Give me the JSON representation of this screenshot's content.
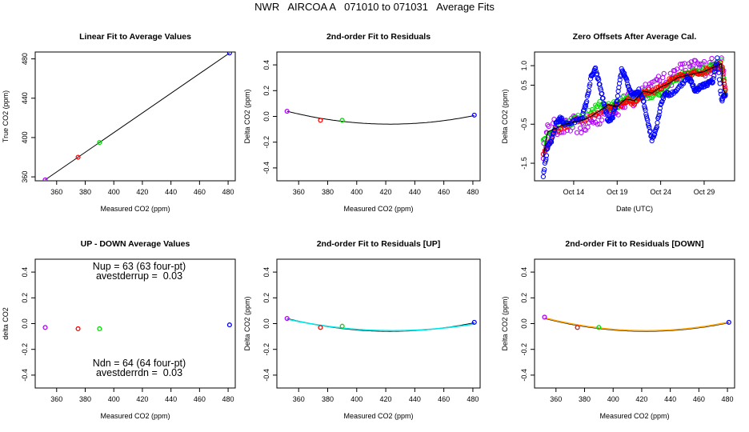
{
  "suptitle": "NWR   AIRCOA A   071010 to 071031   Average Fits",
  "colors": {
    "blue": "#0000ff",
    "red": "#ff0000",
    "green": "#00dd00",
    "purple": "#b000ff",
    "black": "#000000",
    "cyan": "#00e5e5",
    "orange": "#ffa500"
  },
  "chart_data": [
    {
      "id": "p1",
      "type": "scatter",
      "title": "Linear Fit to Average Values",
      "xlabel": "Measured CO2 (ppm)",
      "ylabel": "True CO2 (ppm)",
      "xlim": [
        345,
        485
      ],
      "ylim": [
        356,
        487
      ],
      "xticks": [
        360,
        380,
        400,
        420,
        440,
        460,
        480
      ],
      "yticks": [
        360,
        400,
        440,
        480
      ],
      "points": [
        {
          "x": 352,
          "y": 357,
          "color": "purple"
        },
        {
          "x": 375,
          "y": 380,
          "color": "red"
        },
        {
          "x": 390,
          "y": 395,
          "color": "green"
        },
        {
          "x": 481,
          "y": 486,
          "color": "blue"
        }
      ],
      "line": {
        "x": [
          352,
          481
        ],
        "y": [
          357,
          486
        ],
        "color": "black"
      }
    },
    {
      "id": "p2",
      "type": "scatter",
      "title": "2nd-order Fit to Residuals",
      "xlabel": "Measured CO2 (ppm)",
      "ylabel": "Delta CO2 (ppm)",
      "xlim": [
        345,
        485
      ],
      "ylim": [
        -0.5,
        0.5
      ],
      "xticks": [
        360,
        380,
        400,
        420,
        440,
        460,
        480
      ],
      "yticks": [
        -0.4,
        -0.2,
        0.0,
        0.2,
        0.4
      ],
      "points": [
        {
          "x": 352,
          "y": 0.04,
          "color": "purple"
        },
        {
          "x": 375,
          "y": -0.03,
          "color": "red"
        },
        {
          "x": 390,
          "y": -0.03,
          "color": "green"
        },
        {
          "x": 481,
          "y": 0.01,
          "color": "blue"
        }
      ],
      "curves": [
        {
          "vertex_x": 423,
          "vertex_y": -0.06,
          "anchor_x": 352,
          "anchor_y": 0.04,
          "color": "black"
        }
      ]
    },
    {
      "id": "p3",
      "type": "scatter",
      "title": "Zero Offsets After Average Cal.",
      "xlabel": "Date (UTC)",
      "ylabel": "Delta CO2 (ppm)",
      "xlim": [
        9.5,
        32.5
      ],
      "ylim": [
        -1.95,
        1.35
      ],
      "xticks": [
        14,
        19,
        24,
        29
      ],
      "xtick_labels": [
        "Oct 14",
        "Oct 19",
        "Oct 24",
        "Oct 29"
      ],
      "yticks": [
        -1.5,
        -0.5,
        0.5,
        1.0
      ],
      "ytick_labels": [
        "-1.5",
        "-0.5",
        "0.5",
        "1.0"
      ],
      "series": [
        {
          "name": "purple",
          "color": "purple",
          "jitter": 0.22,
          "x": [
            10.5,
            11,
            12,
            13,
            14,
            15,
            16,
            17,
            18,
            19,
            20,
            21,
            22,
            23,
            24,
            25,
            26,
            27,
            28,
            29,
            30,
            31,
            31.5
          ],
          "y": [
            -1.2,
            -0.7,
            -0.55,
            -0.6,
            -0.5,
            -0.55,
            -0.45,
            -0.3,
            -0.1,
            -0.1,
            0.1,
            0.1,
            0.4,
            0.5,
            0.55,
            0.65,
            0.85,
            0.9,
            0.95,
            0.95,
            1.0,
            1.1,
            0.3
          ]
        },
        {
          "name": "green",
          "color": "green",
          "jitter": 0.1,
          "x": [
            10.5,
            12,
            14,
            16,
            17,
            18,
            19,
            20,
            21,
            22,
            23,
            24,
            25,
            26,
            27,
            28,
            29,
            30,
            31,
            31.5
          ],
          "y": [
            -1.0,
            -0.6,
            -0.4,
            -0.2,
            0.0,
            -0.05,
            0.0,
            0.2,
            0.15,
            0.3,
            0.2,
            0.35,
            0.55,
            0.7,
            0.8,
            0.85,
            0.9,
            0.95,
            1.1,
            0.2
          ]
        },
        {
          "name": "red",
          "color": "red",
          "jitter": 0.07,
          "x": [
            10.5,
            12,
            14,
            16,
            18,
            19,
            20,
            21,
            22,
            23,
            24,
            25,
            26,
            27,
            28,
            29,
            30,
            31,
            31.5
          ],
          "y": [
            -1.3,
            -0.65,
            -0.45,
            -0.3,
            -0.1,
            -0.05,
            0.1,
            0.05,
            0.3,
            0.35,
            0.45,
            0.6,
            0.7,
            0.75,
            0.8,
            0.85,
            0.95,
            1.05,
            0.3
          ]
        },
        {
          "name": "blue",
          "color": "blue",
          "jitter": 0.05,
          "x": [
            10.5,
            11,
            11.5,
            12,
            12.5,
            13,
            14,
            15,
            15.5,
            16,
            16.5,
            17,
            17.5,
            18,
            18.5,
            19,
            19.5,
            20,
            20.5,
            21,
            21.5,
            22,
            22.5,
            23,
            23.5,
            24,
            24.5,
            25,
            26,
            27,
            27.5,
            28,
            28.5,
            29,
            29.5,
            30,
            30.5,
            31,
            31.5
          ],
          "y": [
            -1.8,
            -1.1,
            -0.9,
            -0.45,
            -0.35,
            -0.5,
            -0.45,
            -0.3,
            0.1,
            0.7,
            0.9,
            0.5,
            0.0,
            -0.45,
            -0.3,
            0.1,
            0.9,
            0.7,
            0.3,
            0.25,
            0.35,
            0.1,
            -0.4,
            -0.9,
            -0.6,
            0.0,
            0.3,
            0.25,
            0.4,
            0.7,
            0.6,
            0.35,
            0.45,
            0.5,
            0.55,
            0.6,
            1.2,
            0.1,
            0.3
          ]
        },
        {
          "name": "black",
          "color": "black",
          "line": true,
          "x": [
            10.5,
            11,
            12,
            13,
            14,
            15,
            16,
            17,
            18,
            19,
            20,
            21,
            22,
            23,
            24,
            25,
            26,
            27,
            28,
            29,
            30,
            31,
            31.2,
            31.5
          ],
          "y": [
            -1.35,
            -0.7,
            -0.6,
            -0.5,
            -0.45,
            -0.4,
            -0.3,
            -0.15,
            0.0,
            -0.05,
            0.15,
            0.1,
            0.35,
            0.3,
            0.45,
            0.55,
            0.7,
            0.75,
            0.8,
            0.85,
            0.95,
            1.05,
            0.4,
            0.25
          ]
        }
      ]
    },
    {
      "id": "p4",
      "type": "scatter",
      "title": "UP - DOWN Average Values",
      "xlabel": "Measured CO2 (ppm)",
      "ylabel": "delta CO2",
      "xlim": [
        345,
        485
      ],
      "ylim": [
        -0.5,
        0.5
      ],
      "xticks": [
        360,
        380,
        400,
        420,
        440,
        460,
        480
      ],
      "yticks": [
        -0.4,
        -0.2,
        0.0,
        0.2,
        0.4
      ],
      "points": [
        {
          "x": 352,
          "y": -0.03,
          "color": "purple"
        },
        {
          "x": 375,
          "y": -0.04,
          "color": "red"
        },
        {
          "x": 390,
          "y": -0.04,
          "color": "green"
        },
        {
          "x": 481,
          "y": -0.01,
          "color": "blue"
        }
      ],
      "annotations": [
        {
          "text": "Nup = 63 (63 four-pt)",
          "pos": "top"
        },
        {
          "text": "avestderrup =  0.03",
          "pos": "top2"
        },
        {
          "text": "Ndn = 64 (64 four-pt)",
          "pos": "bottom"
        },
        {
          "text": "avestderrdn =  0.03",
          "pos": "bottom2"
        }
      ]
    },
    {
      "id": "p5",
      "type": "scatter",
      "title": "2nd-order Fit to Residuals [UP]",
      "xlabel": "Measured CO2 (ppm)",
      "ylabel": "Delta CO2 (ppm)",
      "xlim": [
        345,
        485
      ],
      "ylim": [
        -0.5,
        0.5
      ],
      "xticks": [
        360,
        380,
        400,
        420,
        440,
        460,
        480
      ],
      "yticks": [
        -0.4,
        -0.2,
        0.0,
        0.2,
        0.4
      ],
      "points": [
        {
          "x": 352,
          "y": 0.04,
          "color": "purple"
        },
        {
          "x": 375,
          "y": -0.03,
          "color": "red"
        },
        {
          "x": 390,
          "y": -0.02,
          "color": "green"
        },
        {
          "x": 481,
          "y": 0.01,
          "color": "blue"
        }
      ],
      "curves": [
        {
          "vertex_x": 423,
          "vertex_y": -0.06,
          "anchor_x": 352,
          "anchor_y": 0.04,
          "color": "black"
        },
        {
          "vertex_x": 425,
          "vertex_y": -0.055,
          "anchor_x": 352,
          "anchor_y": 0.035,
          "color": "cyan"
        }
      ]
    },
    {
      "id": "p6",
      "type": "scatter",
      "title": "2nd-order Fit to Residuals [DOWN]",
      "xlabel": "Measured CO2 (ppm)",
      "ylabel": "Delta CO2 (ppm)",
      "xlim": [
        345,
        485
      ],
      "ylim": [
        -0.5,
        0.5
      ],
      "xticks": [
        360,
        380,
        400,
        420,
        440,
        460,
        480
      ],
      "yticks": [
        -0.4,
        -0.2,
        0.0,
        0.2,
        0.4
      ],
      "points": [
        {
          "x": 352,
          "y": 0.05,
          "color": "purple"
        },
        {
          "x": 375,
          "y": -0.03,
          "color": "red"
        },
        {
          "x": 390,
          "y": -0.03,
          "color": "green"
        },
        {
          "x": 481,
          "y": 0.01,
          "color": "blue"
        }
      ],
      "curves": [
        {
          "vertex_x": 423,
          "vertex_y": -0.06,
          "anchor_x": 352,
          "anchor_y": 0.04,
          "color": "black"
        },
        {
          "vertex_x": 423,
          "vertex_y": -0.055,
          "anchor_x": 352,
          "anchor_y": 0.045,
          "color": "orange"
        }
      ]
    }
  ]
}
